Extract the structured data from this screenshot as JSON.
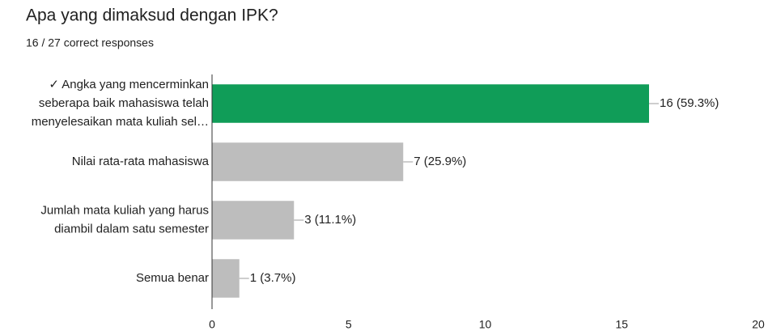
{
  "chart_data": {
    "type": "bar",
    "orientation": "horizontal",
    "title": "Apa yang dimaksud dengan IPK?",
    "subtitle": "16 / 27 correct responses",
    "categories": [
      [
        "✓ Angka yang mencerminkan",
        "seberapa baik mahasiswa telah",
        "menyelesaikan mata kuliah sel…"
      ],
      [
        "Nilai rata-rata mahasiswa"
      ],
      [
        "Jumlah mata kuliah yang harus",
        "diambil dalam satu semester"
      ],
      [
        "Semua benar"
      ]
    ],
    "values": [
      16,
      7,
      3,
      1
    ],
    "value_labels": [
      "16 (59.3%)",
      "7 (25.9%)",
      "3 (11.1%)",
      "1 (3.7%)"
    ],
    "colors": [
      "#109d58",
      "#bdbdbd",
      "#bdbdbd",
      "#bdbdbd"
    ],
    "label_colors": [
      "#0b8043",
      "#757575",
      "#757575",
      "#757575"
    ],
    "xlim": [
      0,
      20
    ],
    "xticks": [
      0,
      5,
      10,
      15,
      20
    ]
  }
}
